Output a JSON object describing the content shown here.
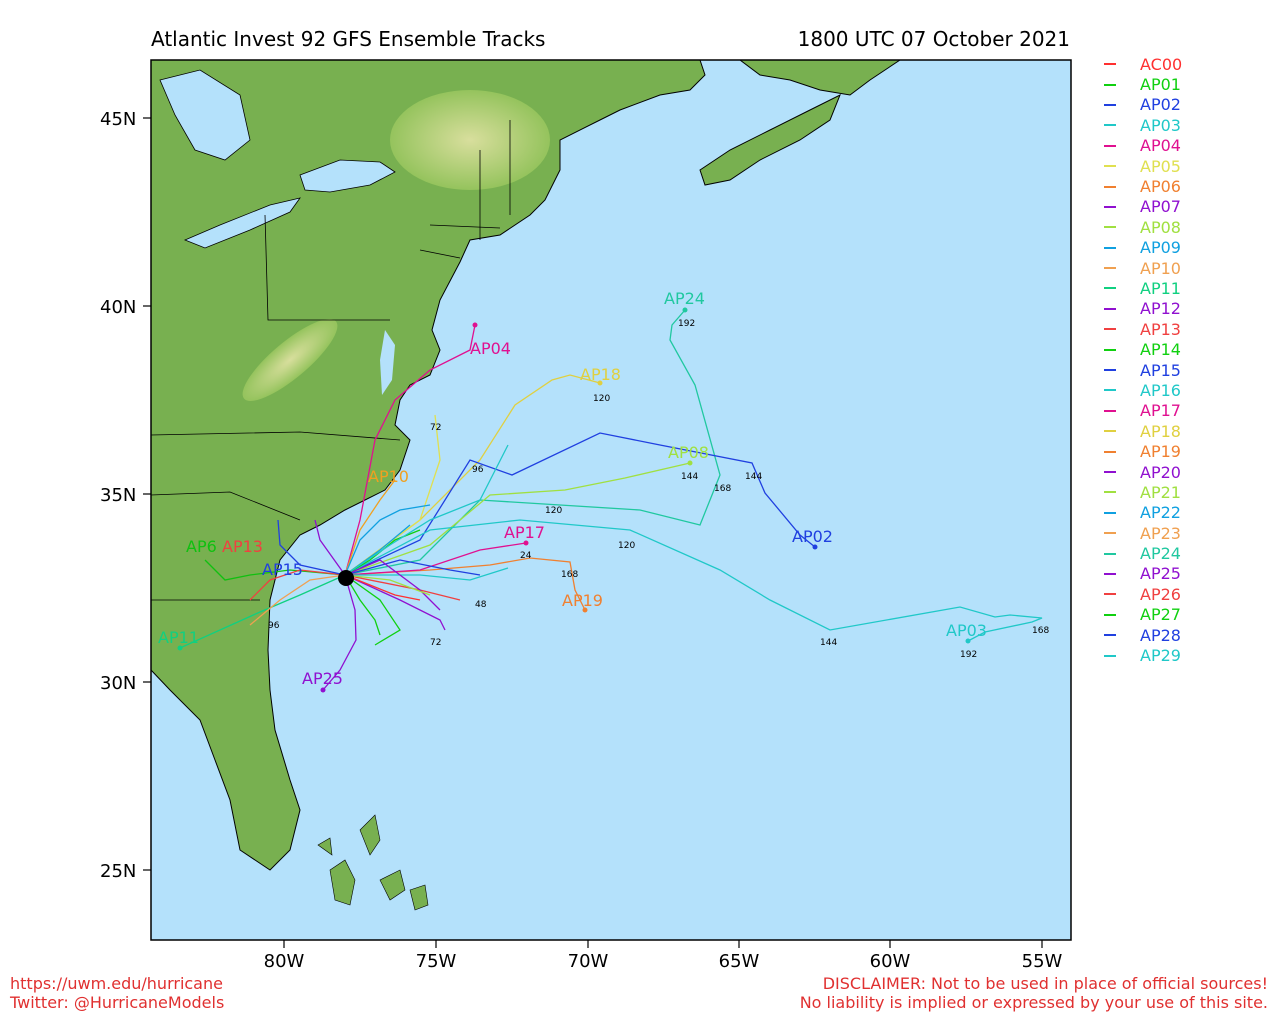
{
  "header": {
    "title": "Atlantic Invest 92 GFS Ensemble Tracks",
    "valid_time": "1800 UTC 07 October 2021"
  },
  "map": {
    "lat_ticks": [
      "45N",
      "40N",
      "35N",
      "30N",
      "25N"
    ],
    "lon_ticks": [
      "80W",
      "75W",
      "70W",
      "65W",
      "60W",
      "55W"
    ],
    "colors": {
      "ocean": "#b4e1fb",
      "land": "#78b050",
      "mountain": "#c9d98a",
      "lake": "#b4e1fb"
    },
    "track_labels": [
      {
        "text": "AP24",
        "color": "#20c8a0"
      },
      {
        "text": "AP04",
        "color": "#e01090"
      },
      {
        "text": "AP18",
        "color": "#e0d040"
      },
      {
        "text": "AP08",
        "color": "#a0e040"
      },
      {
        "text": "AP02",
        "color": "#2040e0"
      },
      {
        "text": "AP17",
        "color": "#e01090"
      },
      {
        "text": "AP03",
        "color": "#20c8c8"
      },
      {
        "text": "AP19",
        "color": "#f08030"
      },
      {
        "text": "AP25",
        "color": "#9010d0"
      },
      {
        "text": "AP11",
        "color": "#10d080"
      },
      {
        "text": "AP6",
        "color": "#10c010"
      },
      {
        "text": "AP13",
        "color": "#f04040"
      },
      {
        "text": "AP15",
        "color": "#2040e0"
      },
      {
        "text": "AP10",
        "color": "#f0a020"
      }
    ],
    "hour_labels": [
      "192",
      "120",
      "144",
      "168",
      "120",
      "144",
      "72",
      "96",
      "120",
      "24",
      "168",
      "144",
      "192",
      "168",
      "48",
      "72",
      "96"
    ]
  },
  "legend": {
    "items": [
      {
        "label": "AC00",
        "color": "#ff3030"
      },
      {
        "label": "AP01",
        "color": "#10d010"
      },
      {
        "label": "AP02",
        "color": "#2040e0"
      },
      {
        "label": "AP03",
        "color": "#20c8c8"
      },
      {
        "label": "AP04",
        "color": "#e01090"
      },
      {
        "label": "AP05",
        "color": "#e0e050"
      },
      {
        "label": "AP06",
        "color": "#f08030"
      },
      {
        "label": "AP07",
        "color": "#9010d0"
      },
      {
        "label": "AP08",
        "color": "#a0e040"
      },
      {
        "label": "AP09",
        "color": "#10a0e0"
      },
      {
        "label": "AP10",
        "color": "#f0a050"
      },
      {
        "label": "AP11",
        "color": "#10d080"
      },
      {
        "label": "AP12",
        "color": "#9010d0"
      },
      {
        "label": "AP13",
        "color": "#f04040"
      },
      {
        "label": "AP14",
        "color": "#10d010"
      },
      {
        "label": "AP15",
        "color": "#2040e0"
      },
      {
        "label": "AP16",
        "color": "#20c8c8"
      },
      {
        "label": "AP17",
        "color": "#e01090"
      },
      {
        "label": "AP18",
        "color": "#e0d040"
      },
      {
        "label": "AP19",
        "color": "#f08030"
      },
      {
        "label": "AP20",
        "color": "#9010d0"
      },
      {
        "label": "AP21",
        "color": "#a0e040"
      },
      {
        "label": "AP22",
        "color": "#10a0e0"
      },
      {
        "label": "AP23",
        "color": "#f0a050"
      },
      {
        "label": "AP24",
        "color": "#20c8a0"
      },
      {
        "label": "AP25",
        "color": "#9010d0"
      },
      {
        "label": "AP26",
        "color": "#f04040"
      },
      {
        "label": "AP27",
        "color": "#10d010"
      },
      {
        "label": "AP28",
        "color": "#2040e0"
      },
      {
        "label": "AP29",
        "color": "#20c8c8"
      }
    ]
  },
  "footer": {
    "url": "https://uwm.edu/hurricane",
    "twitter": "Twitter: @HurricaneModels",
    "disclaimer_1": "DISCLAIMER: Not to be used in place of official sources!",
    "disclaimer_2": "No liability is implied or expressed by your use of this site."
  }
}
